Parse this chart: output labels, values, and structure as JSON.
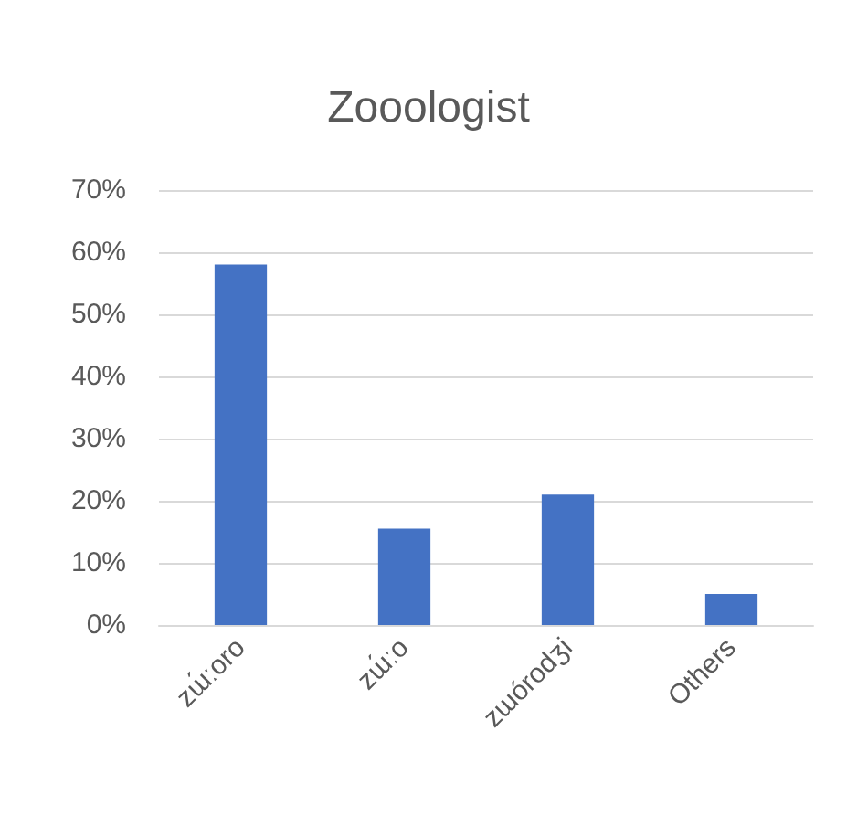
{
  "chart_data": {
    "type": "bar",
    "title": "Zooologist",
    "categories": [
      "zɯ́ːoro",
      "zɯ́ːo",
      "zɯórodʒi",
      "Others"
    ],
    "values": [
      58,
      15.5,
      21,
      5
    ],
    "color": "#4472c4",
    "ylim": [
      0,
      70
    ],
    "yticks": [
      {
        "value": 0,
        "label": "0%"
      },
      {
        "value": 10,
        "label": "10%"
      },
      {
        "value": 20,
        "label": "20%"
      },
      {
        "value": 30,
        "label": "30%"
      },
      {
        "value": 40,
        "label": "40%"
      },
      {
        "value": 50,
        "label": "50%"
      },
      {
        "value": 60,
        "label": "60%"
      },
      {
        "value": 70,
        "label": "70%"
      }
    ],
    "grid": "y"
  }
}
